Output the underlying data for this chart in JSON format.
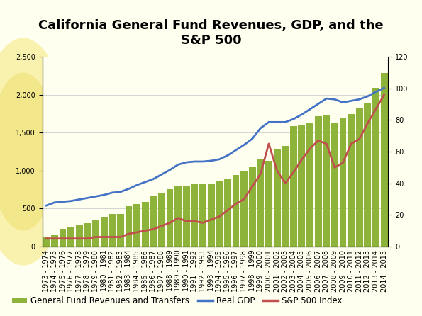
{
  "title": "California General Fund Revenues, GDP, and the\nS&P 500",
  "categories": [
    "1973 - 1974",
    "1974 - 1975",
    "1975 - 1976",
    "1976 - 1977",
    "1977 - 1978",
    "1978 - 1979",
    "1979 - 1980",
    "1980 - 1981",
    "1981 - 1982",
    "1982 - 1983",
    "1983 - 1984",
    "1984 - 1985",
    "1985 - 1986",
    "1986 - 1987",
    "1987 - 1988",
    "1988 - 1989",
    "1989 - 1990",
    "1990 - 1991",
    "1991 - 1992",
    "1992 - 1993",
    "1993 - 1994",
    "1994 - 1995",
    "1995 - 1996",
    "1996 - 1997",
    "1997 - 1998",
    "1998 - 1999",
    "1999 - 2000",
    "2000 - 2001",
    "2001 - 2002",
    "2002 - 2003",
    "2003 - 2004",
    "2004 - 2005",
    "2005 - 2006",
    "2006 - 2007",
    "2007 - 2008",
    "2008 - 2009",
    "2009 - 2010",
    "2010 - 2011",
    "2011 - 2012",
    "2012 - 2013",
    "2013 - 2014",
    "2014 - 2015"
  ],
  "bar_values": [
    130,
    150,
    230,
    260,
    290,
    310,
    350,
    390,
    430,
    430,
    530,
    560,
    590,
    660,
    700,
    760,
    790,
    800,
    820,
    820,
    830,
    870,
    890,
    940,
    1000,
    1050,
    1150,
    1130,
    1280,
    1330,
    1590,
    1600,
    1620,
    1720,
    1740,
    1630,
    1700,
    1750,
    1820,
    1900,
    2090,
    2290
  ],
  "gdp_values": [
    540,
    580,
    590,
    600,
    620,
    640,
    660,
    680,
    710,
    720,
    760,
    810,
    850,
    890,
    950,
    1010,
    1080,
    1110,
    1120,
    1120,
    1130,
    1150,
    1200,
    1270,
    1340,
    1420,
    1560,
    1640,
    1640,
    1640,
    1680,
    1740,
    1810,
    1880,
    1950,
    1940,
    1900,
    1920,
    1940,
    1980,
    2040,
    2090
  ],
  "sp500_values": [
    5,
    5,
    5,
    5,
    5,
    5,
    6,
    6,
    6,
    6,
    8,
    9,
    10,
    11,
    13,
    15,
    18,
    16,
    16,
    15,
    17,
    19,
    23,
    27,
    30,
    38,
    46,
    65,
    48,
    40,
    47,
    55,
    62,
    67,
    65,
    50,
    53,
    65,
    68,
    78,
    87,
    96
  ],
  "bar_color": "#8DB33A",
  "gdp_color": "#4472C4",
  "sp500_color": "#C0504D",
  "background_color": "#FFFFF0",
  "plot_bg_color": "#FFFFF0",
  "ylim_left": [
    0,
    2500
  ],
  "ylim_right": [
    0,
    120
  ],
  "left_yticks": [
    0,
    500,
    1000,
    1500,
    2000,
    2500
  ],
  "right_yticks": [
    0,
    20,
    40,
    60,
    80,
    100,
    120
  ],
  "legend_labels": [
    "General Fund Revenues and Transfers",
    "Real GDP",
    "S&P 500 Index"
  ],
  "title_fontsize": 13,
  "tick_fontsize": 7,
  "legend_fontsize": 8.5,
  "grid_color": "#CCCCCC",
  "sunflower_color": "#F5E878",
  "sunflower_alpha": 0.55
}
